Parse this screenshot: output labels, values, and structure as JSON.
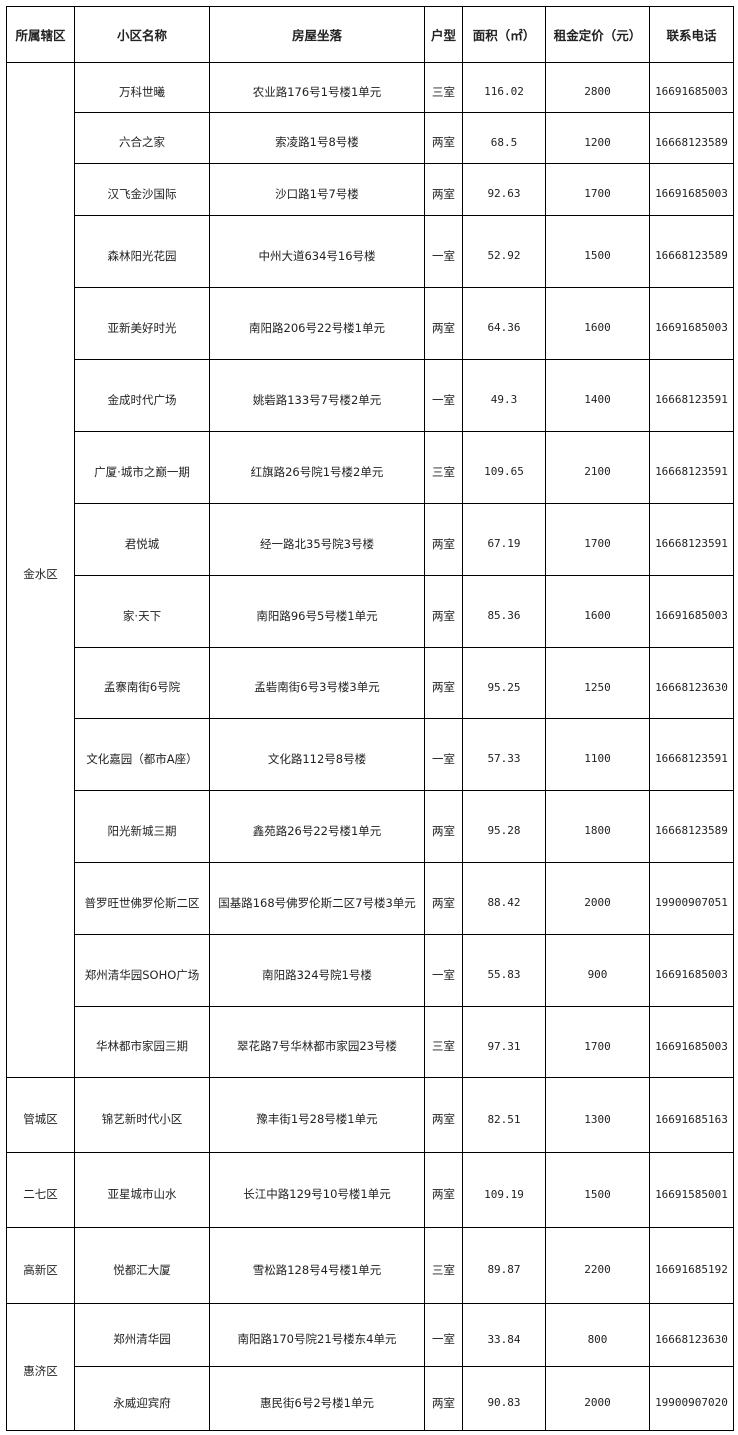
{
  "headers": [
    "所属辖区",
    "小区名称",
    "房屋坐落",
    "户型",
    "面积（㎡）",
    "租金定价（元）",
    "联系电话"
  ],
  "groups": [
    {
      "district": "金水区",
      "rows": [
        [
          "万科世曦",
          "农业路176号1号楼1单元",
          "三室",
          "116.02",
          "2800",
          "16691685003"
        ],
        [
          "六合之家",
          "索凌路1号8号楼",
          "两室",
          "68.5",
          "1200",
          "16668123589"
        ],
        [
          "汉飞金沙国际",
          "沙口路1号7号楼",
          "两室",
          "92.63",
          "1700",
          "16691685003"
        ],
        [
          "森林阳光花园",
          "中州大道634号16号楼",
          "一室",
          "52.92",
          "1500",
          "16668123589"
        ],
        [
          "亚新美好时光",
          "南阳路206号22号楼1单元",
          "两室",
          "64.36",
          "1600",
          "16691685003"
        ],
        [
          "金成时代广场",
          "姚砦路133号7号楼2单元",
          "一室",
          "49.3",
          "1400",
          "16668123591"
        ],
        [
          "广厦·城市之巅一期",
          "红旗路26号院1号楼2单元",
          "三室",
          "109.65",
          "2100",
          "16668123591"
        ],
        [
          "君悦城",
          "经一路北35号院3号楼",
          "两室",
          "67.19",
          "1700",
          "16668123591"
        ],
        [
          "家·天下",
          "南阳路96号5号楼1单元",
          "两室",
          "85.36",
          "1600",
          "16691685003"
        ],
        [
          "孟寨南街6号院",
          "孟砦南街6号3号楼3单元",
          "两室",
          "95.25",
          "1250",
          "16668123630"
        ],
        [
          "文化嘉园（都市A座）",
          "文化路112号8号楼",
          "一室",
          "57.33",
          "1100",
          "16668123591"
        ],
        [
          "阳光新城三期",
          "鑫苑路26号22号楼1单元",
          "两室",
          "95.28",
          "1800",
          "16668123589"
        ],
        [
          "普罗旺世佛罗伦斯二区",
          "国基路168号佛罗伦斯二区7号楼3单元",
          "两室",
          "88.42",
          "2000",
          "19900907051"
        ],
        [
          "郑州清华园SOHO广场",
          "南阳路324号院1号楼",
          "一室",
          "55.83",
          "900",
          "16691685003"
        ],
        [
          "华林都市家园三期",
          "翠花路7号华林都市家园23号楼",
          "三室",
          "97.31",
          "1700",
          "16691685003"
        ]
      ]
    },
    {
      "district": "管城区",
      "rows": [
        [
          "锦艺新时代小区",
          "豫丰街1号28号楼1单元",
          "两室",
          "82.51",
          "1300",
          "16691685163"
        ]
      ]
    },
    {
      "district": "二七区",
      "rows": [
        [
          "亚星城市山水",
          "长江中路129号10号楼1单元",
          "两室",
          "109.19",
          "1500",
          "16691585001"
        ]
      ]
    },
    {
      "district": "高新区",
      "rows": [
        [
          "悦都汇大厦",
          "雪松路128号4号楼1单元",
          "三室",
          "89.87",
          "2200",
          "16691685192"
        ]
      ]
    },
    {
      "district": "惠济区",
      "rows": [
        [
          "郑州清华园",
          "南阳路170号院21号楼东4单元",
          "一室",
          "33.84",
          "800",
          "16668123630"
        ],
        [
          "永威迎宾府",
          "惠民街6号2号楼1单元",
          "两室",
          "90.83",
          "2000",
          "19900907020"
        ]
      ]
    }
  ]
}
